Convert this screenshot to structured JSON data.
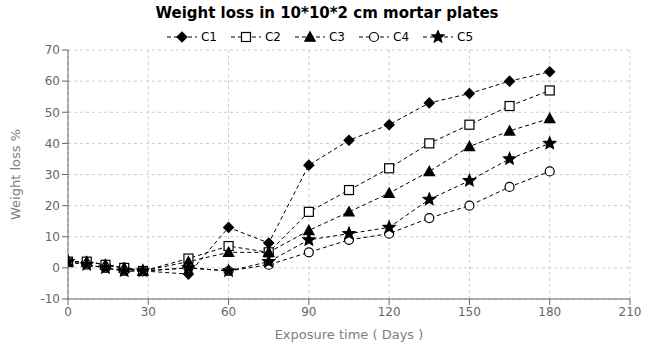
{
  "chart_data": {
    "type": "line",
    "title": "Weight loss in 10*10*2 cm mortar plates",
    "xlabel": "Exposure time ( Days )",
    "ylabel": "Weight loss %",
    "x": [
      0,
      7,
      14,
      21,
      28,
      45,
      60,
      75,
      90,
      105,
      120,
      135,
      150,
      165,
      180
    ],
    "xlim": [
      0,
      210
    ],
    "ylim": [
      -10,
      70
    ],
    "xticks": [
      0,
      30,
      60,
      90,
      120,
      150,
      180,
      210
    ],
    "yticks": [
      -10,
      0,
      10,
      20,
      30,
      40,
      50,
      60,
      70
    ],
    "grid": true,
    "legend": "top",
    "line_style": "dashed",
    "series": [
      {
        "name": "C1",
        "color": "black",
        "marker": "diamond",
        "values": [
          2,
          2,
          1,
          0,
          -1,
          -2,
          13,
          8,
          33,
          41,
          46,
          53,
          56,
          60,
          63
        ]
      },
      {
        "name": "C2",
        "color": "black",
        "marker": "open_square",
        "values": [
          2,
          2,
          1,
          0,
          -1,
          3,
          7,
          5,
          18,
          25,
          32,
          40,
          46,
          52,
          57
        ]
      },
      {
        "name": "C3",
        "color": "black",
        "marker": "triangle",
        "values": [
          2,
          2,
          1,
          0,
          -1,
          2,
          5,
          5,
          12,
          18,
          24,
          31,
          39,
          44,
          48
        ]
      },
      {
        "name": "C4",
        "color": "black",
        "marker": "open_circle",
        "values": [
          2,
          1,
          0,
          -1,
          -1,
          0,
          -1,
          1,
          5,
          9,
          11,
          16,
          20,
          26,
          31
        ]
      },
      {
        "name": "C5",
        "color": "black",
        "marker": "star",
        "values": [
          2,
          1,
          0,
          -1,
          -1,
          0,
          -1,
          2,
          9,
          11,
          13,
          22,
          28,
          35,
          40
        ]
      }
    ]
  }
}
